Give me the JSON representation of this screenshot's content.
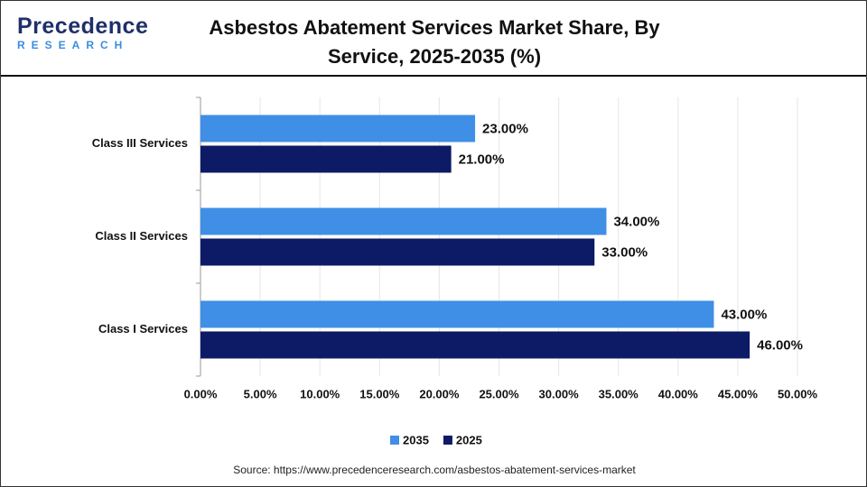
{
  "logo": {
    "name": "Precedence",
    "tagline": "RESEARCH"
  },
  "chart_data": {
    "type": "hbar",
    "title": "Asbestos Abatement Services Market Share, By Service, 2025-2035 (%)",
    "source": "Source: https://www.precedenceresearch.com/asbestos-abatement-services-market",
    "categories": [
      "Class III Services",
      "Class II Services",
      "Class I Services"
    ],
    "series": [
      {
        "name": "2035",
        "color": "#3f8fe6",
        "values": [
          23,
          34,
          43
        ],
        "value_labels": [
          "23.00%",
          "34.00%",
          "43.00%"
        ]
      },
      {
        "name": "2025",
        "color": "#0d1a66",
        "values": [
          21,
          33,
          46
        ],
        "value_labels": [
          "21.00%",
          "33.00%",
          "46.00%"
        ]
      }
    ],
    "xlim": [
      0,
      50
    ],
    "xticks": [
      {
        "value": 0,
        "label": "0.00%"
      },
      {
        "value": 5,
        "label": "5.00%"
      },
      {
        "value": 10,
        "label": "10.00%"
      },
      {
        "value": 15,
        "label": "15.00%"
      },
      {
        "value": 20,
        "label": "20.00%"
      },
      {
        "value": 25,
        "label": "25.00%"
      },
      {
        "value": 30,
        "label": "30.00%"
      },
      {
        "value": 35,
        "label": "35.00%"
      },
      {
        "value": 40,
        "label": "40.00%"
      },
      {
        "value": 45,
        "label": "45.00%"
      },
      {
        "value": 50,
        "label": "50.00%"
      }
    ],
    "grid": true,
    "legend": "bottom"
  }
}
